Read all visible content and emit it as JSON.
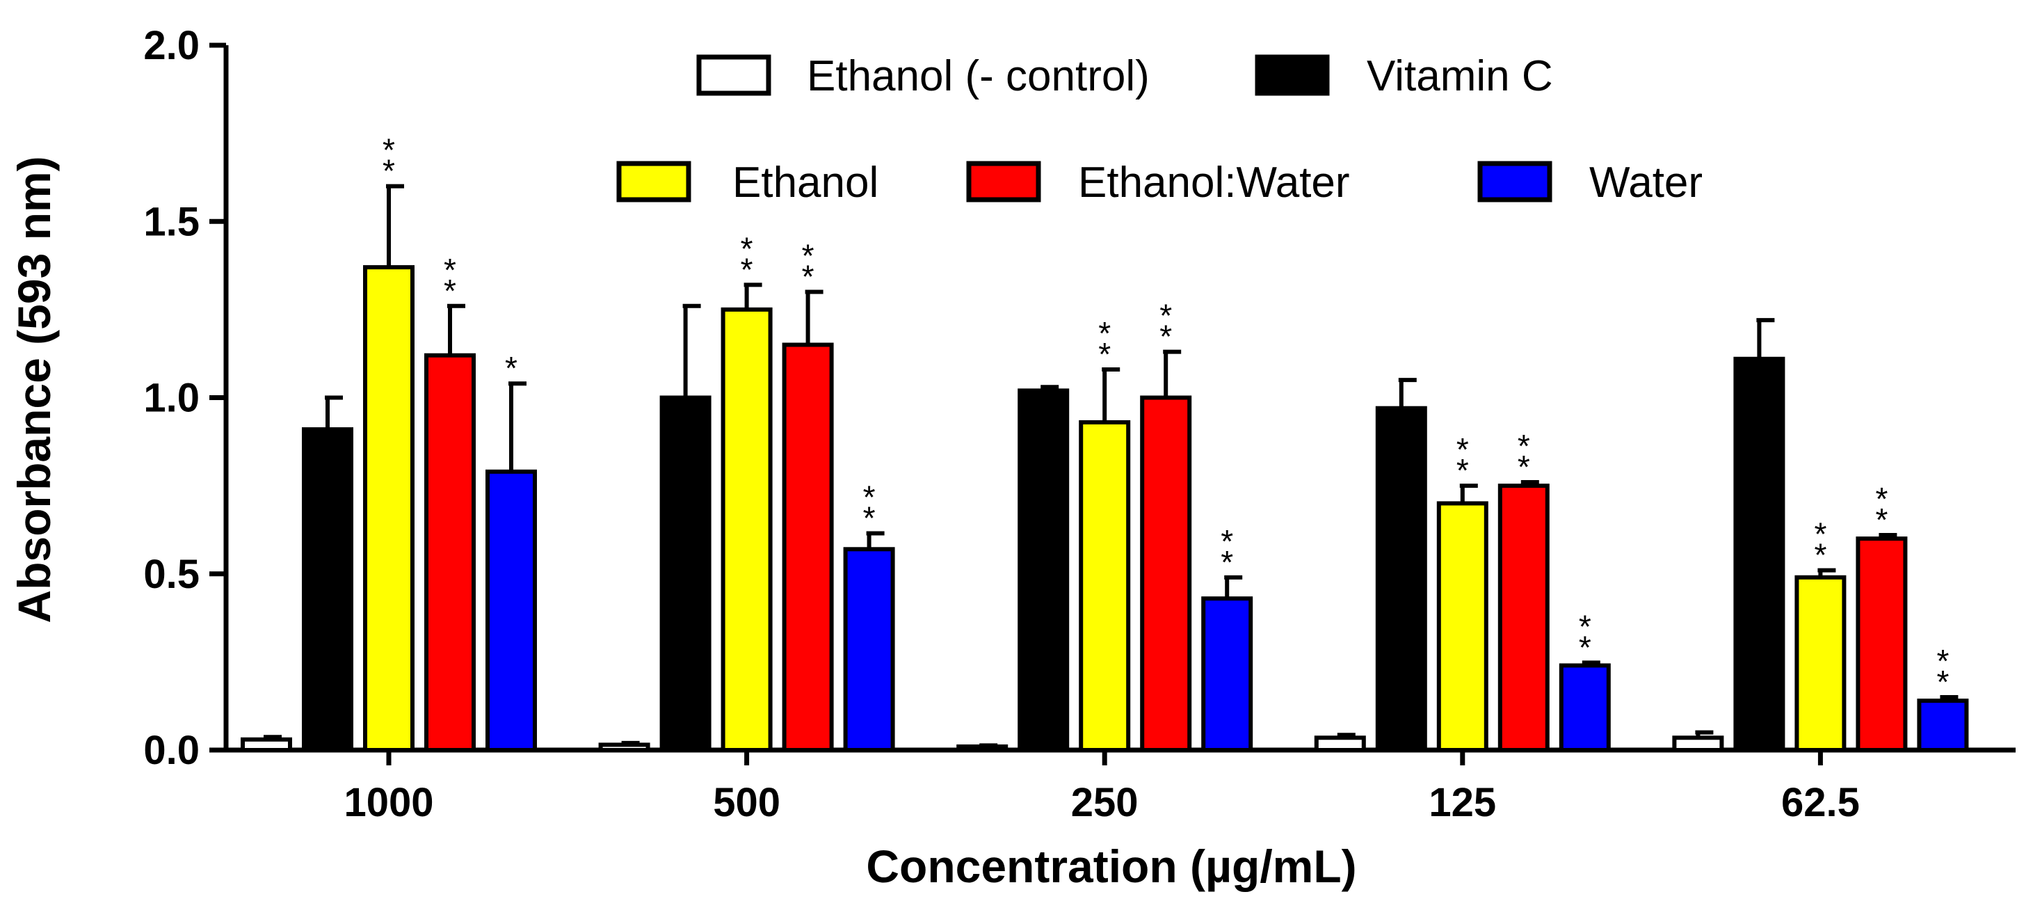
{
  "chart_data": {
    "type": "bar",
    "xlabel": "Concentration (µg/mL)",
    "ylabel": "Absorbance (593 nm)",
    "ylim": [
      0,
      2.0
    ],
    "yticks": [
      "0.0",
      "0.5",
      "1.0",
      "1.5",
      "2.0"
    ],
    "ytick_values": [
      0,
      0.5,
      1.0,
      1.5,
      2.0
    ],
    "categories": [
      "1000",
      "500",
      "250",
      "125",
      "62.5"
    ],
    "legend_rows": [
      [
        "Ethanol (- control)",
        "Vitamin C"
      ],
      [
        "Ethanol",
        "Ethanol:Water",
        "Water"
      ]
    ],
    "series": [
      {
        "name": "Ethanol (- control)",
        "color": "#ffffff",
        "values": [
          0.03,
          0.015,
          0.01,
          0.035,
          0.035
        ],
        "errors": [
          0.007,
          0.005,
          0.003,
          0.008,
          0.015
        ],
        "sig": [
          "",
          "",
          "",
          "",
          ""
        ]
      },
      {
        "name": "Vitamin C",
        "color": "#000000",
        "values": [
          0.91,
          1.0,
          1.02,
          0.97,
          1.11
        ],
        "errors": [
          0.09,
          0.26,
          0.01,
          0.08,
          0.11
        ],
        "sig": [
          "",
          "",
          "",
          "",
          ""
        ]
      },
      {
        "name": "Ethanol",
        "color": "#ffff00",
        "values": [
          1.37,
          1.25,
          0.93,
          0.7,
          0.49
        ],
        "errors": [
          0.23,
          0.07,
          0.15,
          0.05,
          0.02
        ],
        "sig": [
          "**",
          "**",
          "**",
          "**",
          "**"
        ]
      },
      {
        "name": "Ethanol:Water",
        "color": "#ff0000",
        "values": [
          1.12,
          1.15,
          1.0,
          0.75,
          0.6
        ],
        "errors": [
          0.14,
          0.15,
          0.13,
          0.01,
          0.01
        ],
        "sig": [
          "**",
          "**",
          "**",
          "**",
          "**"
        ]
      },
      {
        "name": "Water",
        "color": "#0000ff",
        "values": [
          0.79,
          0.57,
          0.43,
          0.24,
          0.14
        ],
        "errors": [
          0.25,
          0.045,
          0.06,
          0.008,
          0.01
        ],
        "sig": [
          "*",
          "**",
          "**",
          "**",
          "**"
        ]
      }
    ]
  }
}
